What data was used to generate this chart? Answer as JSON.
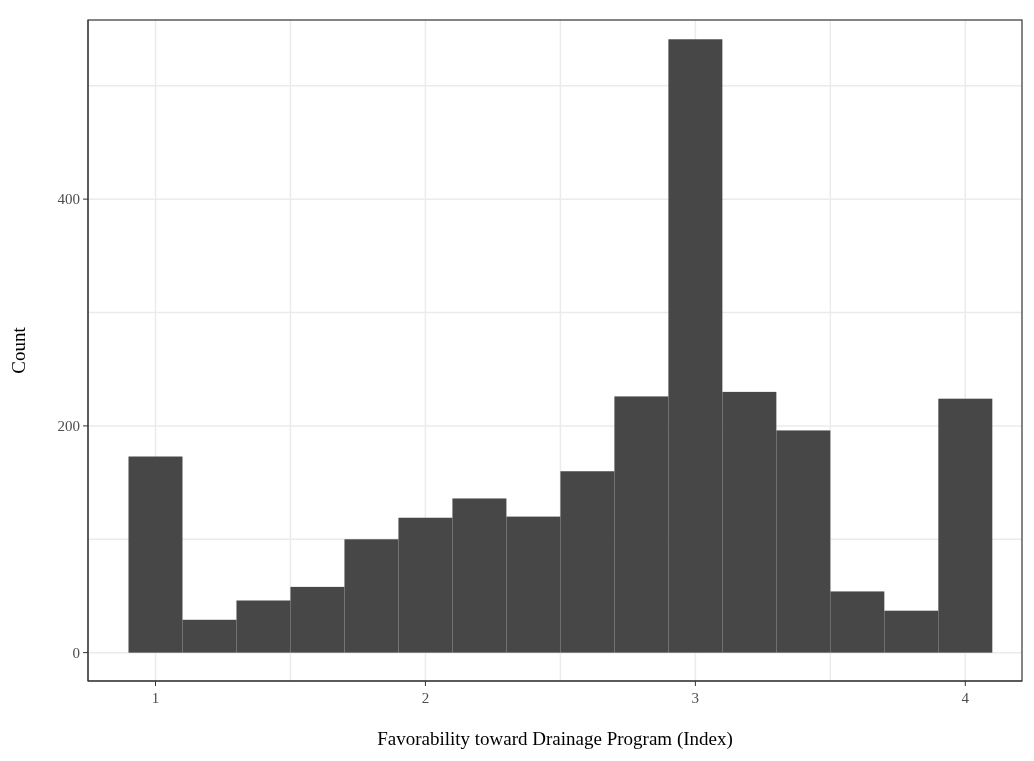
{
  "chart_data": {
    "type": "histogram",
    "xlabel": "Favorability toward Drainage Program (Index)",
    "ylabel": "Count",
    "bins": [
      0.9,
      1.1,
      1.3,
      1.5,
      1.7,
      1.9,
      2.1,
      2.3,
      2.5,
      2.7,
      2.9,
      3.1,
      3.3,
      3.5,
      3.7,
      3.9,
      4.1
    ],
    "values": [
      173,
      29,
      46,
      58,
      100,
      119,
      136,
      120,
      160,
      226,
      541,
      230,
      196,
      54,
      37,
      224
    ],
    "color": "#474747",
    "xlim": [
      0.75,
      4.21
    ],
    "ylim": [
      -25,
      558
    ],
    "xticks": [
      1,
      {
        "value": 1.5,
        "label": null
      },
      2,
      {
        "value": 2.5,
        "label": null
      },
      3,
      {
        "value": 3.5,
        "label": null
      },
      4
    ],
    "yticks": [
      0,
      {
        "value": 100,
        "label": null
      },
      200,
      {
        "value": 300,
        "label": null
      },
      400,
      {
        "value": 500,
        "label": null
      }
    ],
    "grid": true
  }
}
